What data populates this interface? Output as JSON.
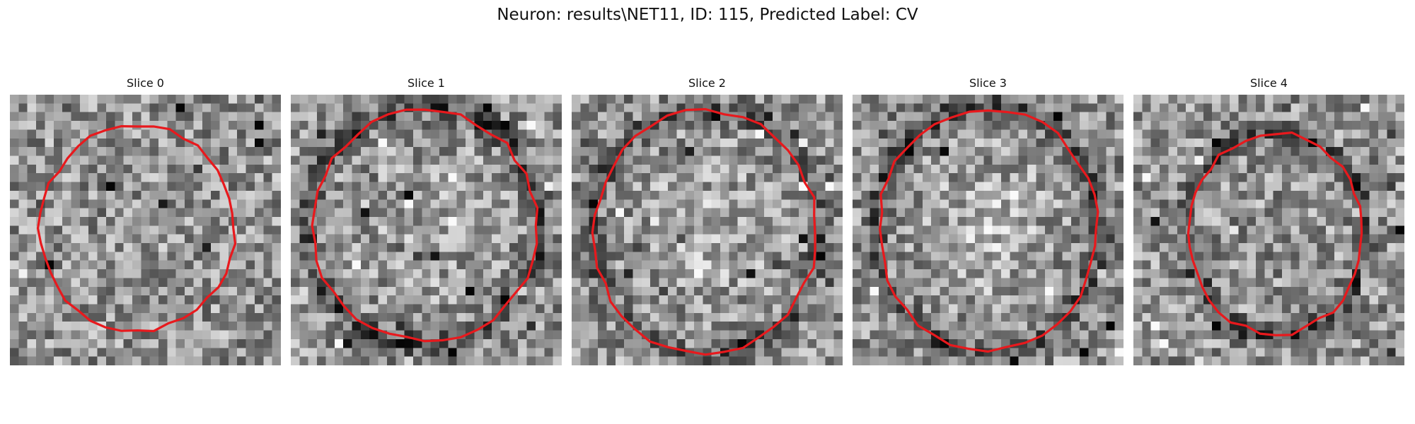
{
  "figure": {
    "title": "Neuron: results\\NET11, ID: 115, Predicted Label: CV"
  },
  "panels": [
    {
      "title": "Slice 0"
    },
    {
      "title": "Slice 1"
    },
    {
      "title": "Slice 2"
    },
    {
      "title": "Slice 3"
    },
    {
      "title": "Slice 4"
    }
  ],
  "colors": {
    "contour": "#e8191d",
    "background": "#ffffff"
  }
}
